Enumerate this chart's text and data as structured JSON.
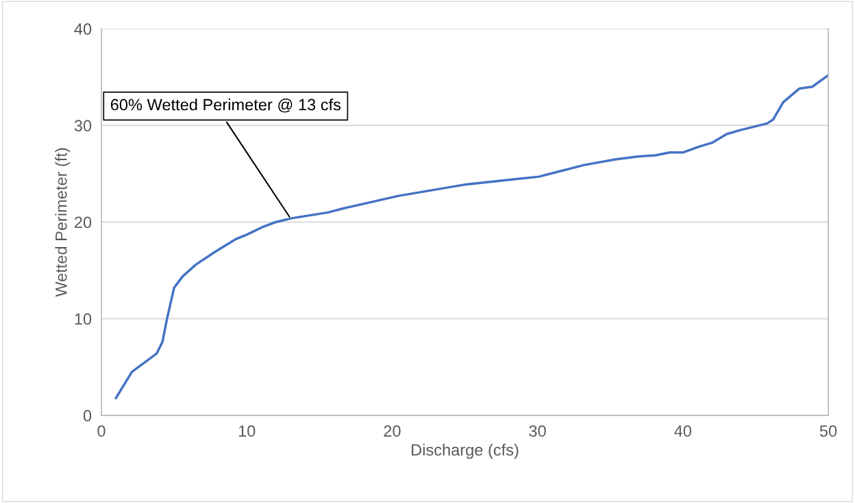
{
  "chart_data": {
    "type": "line",
    "xlabel": "Discharge (cfs)",
    "ylabel": "Wetted Perimeter (ft)",
    "x": [
      1.0,
      2.1,
      3.8,
      4.2,
      4.5,
      5.0,
      5.6,
      6.5,
      7.8,
      9.2,
      10.0,
      11.1,
      12.0,
      13.1,
      15.6,
      16.6,
      20.4,
      25.1,
      28.8,
      30.1,
      31.4,
      33.2,
      35.4,
      37.0,
      38.1,
      39.1,
      40.0,
      41.1,
      42.0,
      43.0,
      43.9,
      45.8,
      46.2,
      46.9,
      48.0,
      48.9,
      50.0
    ],
    "series": [
      {
        "color": "#4472c4",
        "values": [
          1.8,
          4.5,
          6.4,
          7.6,
          9.9,
          13.2,
          14.4,
          15.6,
          16.9,
          18.2,
          18.7,
          19.5,
          20.0,
          20.4,
          21.0,
          21.4,
          22.7,
          23.9,
          24.5,
          24.7,
          25.2,
          25.9,
          26.5,
          26.8,
          26.9,
          27.2,
          27.2,
          27.8,
          28.2,
          29.1,
          29.5,
          30.2,
          30.6,
          32.4,
          33.8,
          34.0,
          35.2
        ]
      }
    ],
    "xlim": [
      0,
      50
    ],
    "ylim": [
      0,
      40
    ],
    "xticks": [
      0,
      10,
      20,
      30,
      40,
      50
    ],
    "yticks": [
      0,
      10,
      20,
      30,
      40
    ],
    "grid": "y",
    "legend": false,
    "marker": "none",
    "line_style": "solid",
    "annotations": [
      {
        "text": "60% Wetted Perimeter @ 13 cfs",
        "x": 13,
        "y": 20.4
      }
    ]
  }
}
